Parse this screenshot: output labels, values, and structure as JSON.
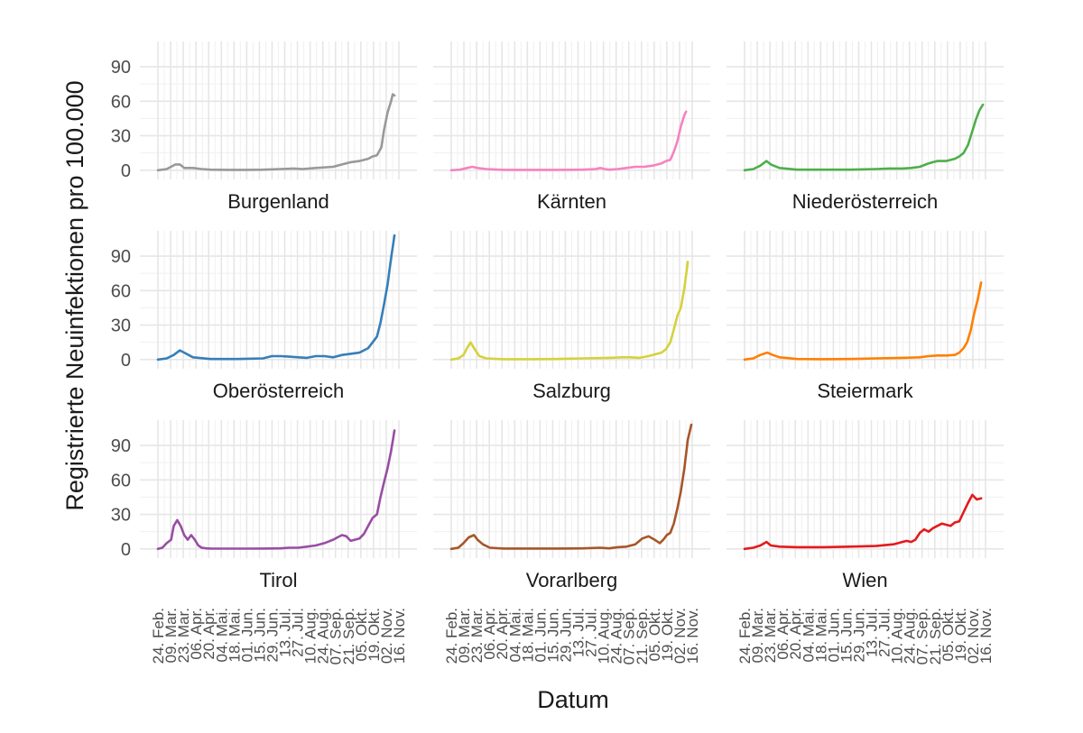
{
  "chart_data": {
    "type": "line",
    "layout": "facet-grid-3x3",
    "ylabel": "Registrierte Neuinfektionen pro 100.000",
    "xlabel": "Datum",
    "ylim": [
      -8,
      112
    ],
    "yticks": [
      "0",
      "30",
      "60",
      "90"
    ],
    "ytick_values": [
      0,
      30,
      60,
      90
    ],
    "x_range_days": [
      0,
      275
    ],
    "xtick_labels": [
      "24. Feb.",
      "09. Mar.",
      "23. Mar.",
      "06. Apr.",
      "20. Apr.",
      "04. Mai.",
      "18. Mai.",
      "01. Jun.",
      "15. Jun.",
      "29. Jun.",
      "13. Jul.",
      "27. Jul.",
      "10. Aug.",
      "24. Aug.",
      "07. Sep.",
      "21. Sep.",
      "05. Okt.",
      "19. Okt.",
      "02. Nov.",
      "16. Nov."
    ],
    "grid": true,
    "series": [
      {
        "name": "Burgenland",
        "color": "#999999",
        "x": [
          0,
          10,
          20,
          25,
          30,
          40,
          50,
          60,
          80,
          100,
          120,
          140,
          155,
          165,
          180,
          200,
          210,
          220,
          230,
          240,
          245,
          250,
          255,
          258,
          262,
          266,
          268,
          270
        ],
        "y": [
          0,
          1,
          5,
          5,
          2,
          2,
          1,
          0.5,
          0.3,
          0.3,
          0.5,
          1,
          1.5,
          1,
          2,
          3,
          5,
          7,
          8,
          10,
          12,
          13,
          20,
          35,
          50,
          60,
          66,
          65
        ]
      },
      {
        "name": "Kärnten",
        "color": "#F781BF",
        "x": [
          0,
          10,
          18,
          24,
          30,
          40,
          60,
          90,
          120,
          150,
          165,
          170,
          175,
          180,
          190,
          200,
          210,
          220,
          230,
          240,
          245,
          250,
          254,
          258,
          262,
          266,
          268
        ],
        "y": [
          0,
          0.5,
          2,
          3,
          2,
          1,
          0.3,
          0.3,
          0.3,
          0.5,
          1,
          2,
          1,
          0.5,
          1,
          2,
          3,
          3,
          4,
          6,
          8,
          9,
          16,
          25,
          38,
          48,
          51
        ]
      },
      {
        "name": "Niederösterreich",
        "color": "#4DAF4A",
        "x": [
          0,
          10,
          18,
          25,
          30,
          40,
          60,
          90,
          120,
          150,
          165,
          180,
          190,
          200,
          210,
          215,
          220,
          230,
          240,
          245,
          250,
          255,
          260,
          264,
          268,
          272
        ],
        "y": [
          0,
          1,
          4,
          8,
          5,
          2,
          0.5,
          0.5,
          0.5,
          1,
          1.5,
          1.5,
          2,
          3,
          6,
          7,
          8,
          8,
          10,
          12,
          15,
          22,
          34,
          44,
          52,
          57
        ]
      },
      {
        "name": "Oberösterreich",
        "color": "#377EB8",
        "x": [
          0,
          10,
          18,
          25,
          30,
          40,
          60,
          90,
          120,
          130,
          140,
          150,
          160,
          170,
          180,
          190,
          200,
          210,
          220,
          230,
          240,
          245,
          250,
          254,
          258,
          262,
          266,
          270
        ],
        "y": [
          0,
          1,
          4,
          8,
          6,
          2,
          0.5,
          0.5,
          1,
          3,
          3,
          2.5,
          2,
          1.5,
          3,
          3,
          2,
          4,
          5,
          6,
          10,
          15,
          20,
          32,
          48,
          65,
          88,
          108
        ]
      },
      {
        "name": "Salzburg",
        "color": "#D4D23B",
        "x": [
          0,
          8,
          14,
          18,
          22,
          26,
          32,
          40,
          60,
          90,
          120,
          150,
          180,
          195,
          205,
          215,
          225,
          235,
          240,
          245,
          250,
          254,
          258,
          262,
          266,
          270
        ],
        "y": [
          0,
          1,
          4,
          10,
          15,
          10,
          3,
          1,
          0.3,
          0.3,
          0.5,
          1,
          1.5,
          2,
          2,
          1.5,
          3,
          5,
          6,
          9,
          15,
          26,
          38,
          45,
          62,
          85
        ]
      },
      {
        "name": "Steiermark",
        "color": "#FF7F00",
        "x": [
          0,
          10,
          18,
          26,
          32,
          40,
          60,
          90,
          120,
          150,
          180,
          200,
          210,
          220,
          230,
          240,
          245,
          250,
          254,
          258,
          262,
          266,
          270
        ],
        "y": [
          0,
          1,
          4,
          6,
          4,
          2,
          0.5,
          0.3,
          0.5,
          1,
          1.5,
          2,
          3,
          3.5,
          3.5,
          4,
          6,
          10,
          15,
          25,
          40,
          52,
          67
        ]
      },
      {
        "name": "Tirol",
        "color": "#984EA3",
        "x": [
          0,
          5,
          10,
          15,
          18,
          22,
          26,
          30,
          34,
          38,
          42,
          46,
          50,
          55,
          60,
          80,
          100,
          120,
          140,
          150,
          160,
          170,
          180,
          190,
          200,
          205,
          210,
          215,
          220,
          230,
          235,
          240,
          245,
          250,
          254,
          258,
          262,
          266,
          270
        ],
        "y": [
          0,
          1,
          5,
          8,
          20,
          25,
          20,
          12,
          8,
          12,
          8,
          3,
          1,
          0.5,
          0.3,
          0.2,
          0.2,
          0.3,
          0.5,
          1,
          1,
          2,
          3,
          5,
          8,
          10,
          12,
          11,
          7,
          9,
          13,
          20,
          27,
          30,
          45,
          58,
          70,
          85,
          103
        ]
      },
      {
        "name": "Vorarlberg",
        "color": "#A65628",
        "x": [
          0,
          8,
          14,
          20,
          26,
          30,
          36,
          44,
          60,
          90,
          120,
          150,
          170,
          180,
          190,
          200,
          210,
          218,
          225,
          232,
          238,
          242,
          246,
          250,
          254,
          258,
          262,
          266,
          270,
          274
        ],
        "y": [
          0,
          1,
          5,
          10,
          12,
          8,
          4,
          1,
          0.3,
          0.3,
          0.3,
          0.5,
          1,
          0.5,
          1.5,
          2,
          4,
          9,
          11,
          8,
          5,
          8,
          12,
          14,
          22,
          35,
          50,
          70,
          95,
          108
        ]
      },
      {
        "name": "Wien",
        "color": "#E41A1C",
        "x": [
          0,
          10,
          18,
          25,
          30,
          40,
          60,
          90,
          120,
          150,
          170,
          180,
          185,
          190,
          195,
          200,
          205,
          210,
          215,
          220,
          225,
          230,
          235,
          240,
          245,
          250,
          255,
          260,
          265,
          270
        ],
        "y": [
          0,
          1,
          3,
          6,
          3,
          2,
          1.5,
          1.5,
          2,
          2.5,
          4,
          6,
          7,
          6,
          8,
          14,
          17,
          15,
          18,
          20,
          22,
          21,
          20,
          23,
          24,
          32,
          40,
          47,
          43,
          44
        ]
      }
    ]
  }
}
